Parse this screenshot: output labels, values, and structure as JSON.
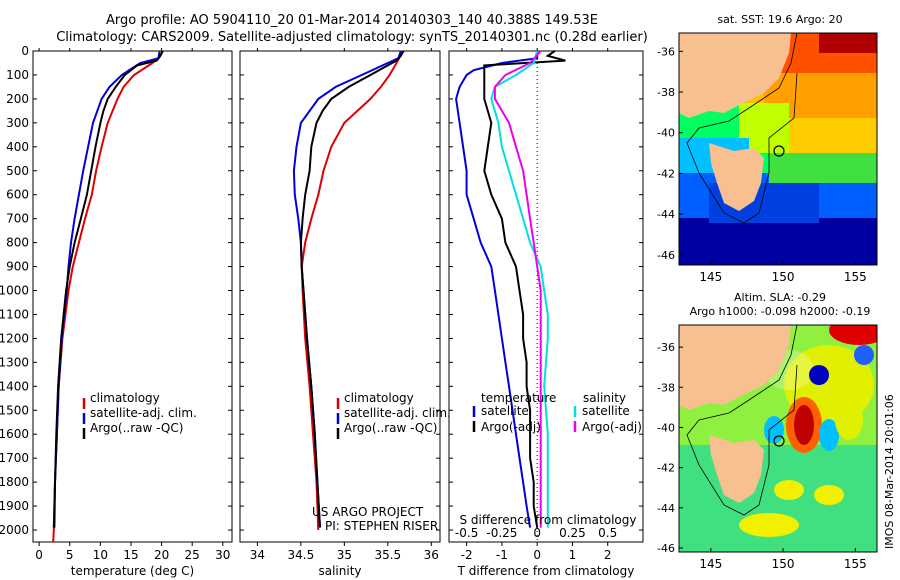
{
  "header": {
    "line1": "Argo profile: AO 5904110_20 01-Mar-2014 20140303_140 40.388S 149.53E",
    "line2": "Climatology: CARS2009. Satellite-adjusted climatology: synTS_20140301.nc (0.28d earlier)"
  },
  "colors": {
    "climatology": "#dd0000",
    "satellite": "#0000dd",
    "argo": "#000000",
    "sat_salinity": "#00e0e0",
    "argo_salinity": "#ee00ee"
  },
  "legend": {
    "climatology": "climatology",
    "satellite_adj": "satellite-adj. clim.",
    "argo": "Argo(..raw -QC)",
    "temperature": "temperature",
    "salinity": "salinity",
    "satellite": "satellite",
    "argo_adj": "Argo(-adj)"
  },
  "credits": {
    "project": "US ARGO PROJECT",
    "pi": "PI: STEPHEN RISER"
  },
  "maps": {
    "sst_title": "sat. SST: 19.6 Argo: 20",
    "sla_title1": "Altim. SLA: -0.29",
    "sla_title2": "Argo h1000: -0.098 h2000: -0.19",
    "lat_ticks": [
      "-36",
      "-38",
      "-40",
      "-42",
      "-44",
      "-46"
    ],
    "lon_ticks": [
      "145",
      "150",
      "155"
    ],
    "stamp": "IMOS 08-Mar-2014 20:01:06"
  },
  "chart_data": [
    {
      "type": "line",
      "name": "temperature",
      "xlabel": "temperature (deg C)",
      "ylabel": "",
      "xlim": [
        -1,
        31.5
      ],
      "ylim": [
        2050,
        0
      ],
      "xticks": [
        0,
        5,
        10,
        15,
        20,
        25,
        30
      ],
      "yticks": [
        0,
        100,
        200,
        300,
        400,
        500,
        600,
        700,
        800,
        900,
        1000,
        1100,
        1200,
        1300,
        1400,
        1500,
        1600,
        1700,
        1800,
        1900,
        2000
      ],
      "series": [
        {
          "name": "climatology",
          "color": "#dd0000",
          "depth": [
            0,
            30,
            50,
            100,
            150,
            200,
            300,
            400,
            500,
            600,
            700,
            800,
            900,
            1000,
            1200,
            1400,
            1600,
            1800,
            2000,
            2050
          ],
          "values": [
            19.7,
            19.5,
            18.5,
            15.5,
            13.8,
            12.8,
            11.2,
            10.2,
            9.3,
            8.6,
            7.5,
            6.5,
            5.5,
            4.8,
            3.8,
            3.2,
            2.9,
            2.6,
            2.4,
            2.3
          ]
        },
        {
          "name": "satellite-adj. clim.",
          "color": "#0000dd",
          "depth": [
            0,
            30,
            50,
            100,
            150,
            200,
            300,
            400,
            500,
            600,
            700,
            800,
            900,
            1000,
            1200,
            1400,
            1600,
            1800,
            1990
          ],
          "values": [
            19.7,
            19.5,
            16.5,
            13.5,
            11.5,
            10.2,
            8.8,
            8.0,
            7.2,
            6.5,
            5.8,
            5.2,
            4.8,
            4.5,
            3.7,
            3.2,
            2.9,
            2.6,
            2.4
          ]
        },
        {
          "name": "Argo(..raw -QC)",
          "color": "#000000",
          "depth": [
            0,
            20,
            40,
            60,
            100,
            150,
            200,
            250,
            300,
            400,
            500,
            600,
            700,
            800,
            900,
            1000,
            1200,
            1400,
            1600,
            1800,
            1990
          ],
          "values": [
            20.2,
            19.8,
            19.2,
            16.0,
            14.0,
            12.5,
            11.2,
            10.5,
            10.0,
            9.2,
            8.5,
            7.8,
            6.8,
            5.8,
            5.0,
            4.4,
            3.6,
            3.1,
            2.8,
            2.6,
            2.5
          ]
        }
      ]
    },
    {
      "type": "line",
      "name": "salinity",
      "xlabel": "salinity",
      "ylabel": "",
      "xlim": [
        33.8,
        36.1
      ],
      "ylim": [
        2050,
        0
      ],
      "xticks": [
        34,
        34.5,
        35,
        35.5,
        36
      ],
      "xticklabels": [
        "34",
        "34.5",
        "35",
        "35.5",
        "36"
      ],
      "series": [
        {
          "name": "climatology",
          "color": "#dd0000",
          "depth": [
            0,
            30,
            50,
            100,
            150,
            200,
            300,
            400,
            500,
            600,
            700,
            800,
            900,
            1000,
            1200,
            1400,
            1600,
            1800,
            2000
          ],
          "values": [
            35.65,
            35.63,
            35.6,
            35.52,
            35.42,
            35.3,
            35.0,
            34.85,
            34.76,
            34.7,
            34.62,
            34.55,
            34.51,
            34.52,
            34.55,
            34.6,
            34.64,
            34.68,
            34.7
          ]
        },
        {
          "name": "satellite-adj. clim.",
          "color": "#0000dd",
          "depth": [
            0,
            30,
            50,
            100,
            150,
            200,
            300,
            400,
            500,
            600,
            700,
            800,
            900,
            1000,
            1200,
            1400,
            1600,
            1800,
            1990
          ],
          "values": [
            35.65,
            35.62,
            35.5,
            35.2,
            34.9,
            34.7,
            34.5,
            34.45,
            34.42,
            34.43,
            34.47,
            34.5,
            34.51,
            34.53,
            34.57,
            34.62,
            34.66,
            34.69,
            34.72
          ]
        },
        {
          "name": "Argo(..raw -QC)",
          "color": "#000000",
          "depth": [
            0,
            20,
            40,
            60,
            100,
            150,
            200,
            250,
            300,
            400,
            500,
            600,
            700,
            800,
            900,
            1000,
            1200,
            1400,
            1600,
            1800,
            1990
          ],
          "values": [
            35.68,
            35.65,
            35.6,
            35.5,
            35.3,
            35.05,
            34.85,
            34.75,
            34.68,
            34.62,
            34.6,
            34.55,
            34.52,
            34.5,
            34.51,
            34.53,
            34.57,
            34.62,
            34.66,
            34.69,
            34.72
          ]
        }
      ]
    },
    {
      "type": "line",
      "name": "difference",
      "xlabel": "T difference from climatology",
      "toplabel": "S difference from climatology",
      "xlim": [
        -2.5,
        3
      ],
      "ylim": [
        2050,
        0
      ],
      "xticks": [
        -2,
        -1,
        0,
        1,
        2
      ],
      "topticks": [
        -2,
        -1,
        0,
        1,
        2
      ],
      "topticklabels": [
        "-0.5",
        "-0.25",
        "0",
        "0.25",
        "0.5"
      ],
      "series": [
        {
          "name": "temperature satellite",
          "color": "#0000dd",
          "depth": [
            0,
            30,
            50,
            80,
            100,
            150,
            200,
            300,
            400,
            500,
            600,
            700,
            800,
            900,
            1000,
            1100,
            1200,
            1300,
            1400,
            1500,
            1600,
            1700,
            1800,
            1900,
            1990
          ],
          "values": [
            0.0,
            0.0,
            -1.0,
            -1.8,
            -2.0,
            -2.2,
            -2.3,
            -2.2,
            -2.1,
            -2.0,
            -2.0,
            -1.8,
            -1.6,
            -1.3,
            -1.2,
            -1.1,
            -1.0,
            -0.9,
            -0.8,
            -0.7,
            -0.6,
            -0.5,
            -0.4,
            -0.3,
            -0.2
          ]
        },
        {
          "name": "temperature Argo(-adj)",
          "color": "#000000",
          "depth": [
            0,
            20,
            40,
            60,
            100,
            150,
            200,
            300,
            400,
            500,
            600,
            700,
            800,
            900,
            1000,
            1100,
            1200,
            1300,
            1400,
            1500,
            1600,
            1700,
            1800,
            1900,
            1990
          ],
          "values": [
            0.5,
            0.3,
            0.8,
            -1.5,
            -1.5,
            -1.5,
            -1.5,
            -1.3,
            -1.4,
            -1.5,
            -1.3,
            -1.0,
            -0.9,
            -0.6,
            -0.5,
            -0.4,
            -0.4,
            -0.3,
            -0.3,
            -0.2,
            -0.2,
            -0.2,
            -0.1,
            -0.1,
            0.0
          ]
        },
        {
          "name": "salinity satellite",
          "color": "#00e0e0",
          "depth": [
            0,
            50,
            100,
            150,
            200,
            300,
            400,
            500,
            600,
            700,
            800,
            900,
            1000,
            1100,
            1200,
            1400,
            1600,
            1800,
            1990
          ],
          "values": [
            0.0,
            -0.1,
            -0.6,
            -1.2,
            -1.3,
            -1.1,
            -1.0,
            -0.8,
            -0.6,
            -0.4,
            -0.2,
            0.1,
            0.2,
            0.3,
            0.3,
            0.2,
            0.3,
            0.3,
            0.3
          ]
        },
        {
          "name": "salinity Argo(-adj)",
          "color": "#ee00ee",
          "depth": [
            0,
            50,
            100,
            150,
            200,
            300,
            400,
            500,
            600,
            700,
            800,
            900,
            1000,
            1100,
            1200,
            1400,
            1600,
            1800,
            1990
          ],
          "values": [
            0.1,
            -0.2,
            -0.9,
            -1.2,
            -1.2,
            -0.8,
            -0.6,
            -0.4,
            -0.3,
            -0.2,
            -0.1,
            0.0,
            0.1,
            0.1,
            0.1,
            0.1,
            0.1,
            0.1,
            0.1
          ]
        }
      ]
    }
  ]
}
